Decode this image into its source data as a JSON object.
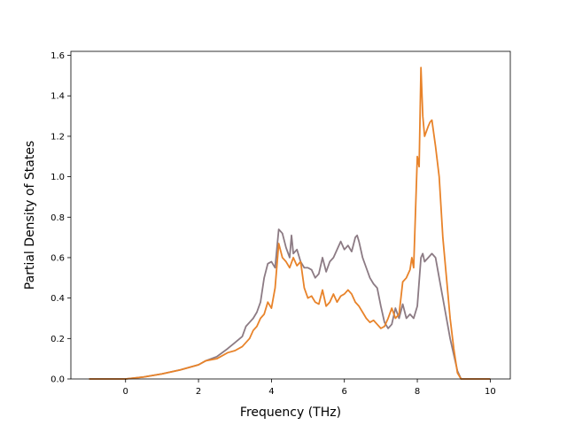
{
  "chart_data": {
    "type": "line",
    "title": "",
    "xlabel": "Frequency (THz)",
    "ylabel": "Partial Density of States",
    "xlim": [
      -1.5,
      10.55
    ],
    "ylim": [
      0.0,
      1.62
    ],
    "xticks": [
      0,
      2,
      4,
      6,
      8,
      10
    ],
    "xtick_labels": [
      "0",
      "2",
      "4",
      "6",
      "8",
      "10"
    ],
    "yticks": [
      0.0,
      0.2,
      0.4,
      0.6,
      0.8,
      1.0,
      1.2,
      1.4,
      1.6
    ],
    "ytick_labels": [
      "0.0",
      "0.2",
      "0.4",
      "0.6",
      "0.8",
      "1.0",
      "1.2",
      "1.4",
      "1.6"
    ],
    "grid": false,
    "legend": "none",
    "series": [
      {
        "color": "#8c7b84",
        "x": [
          -1.0,
          0.0,
          0.5,
          1.0,
          1.5,
          2.0,
          2.2,
          2.5,
          2.8,
          3.0,
          3.2,
          3.3,
          3.4,
          3.5,
          3.6,
          3.7,
          3.8,
          3.9,
          4.0,
          4.1,
          4.2,
          4.3,
          4.4,
          4.5,
          4.55,
          4.6,
          4.7,
          4.8,
          4.9,
          5.0,
          5.1,
          5.2,
          5.3,
          5.4,
          5.5,
          5.6,
          5.7,
          5.8,
          5.9,
          6.0,
          6.1,
          6.2,
          6.3,
          6.35,
          6.4,
          6.5,
          6.6,
          6.7,
          6.8,
          6.9,
          7.0,
          7.1,
          7.2,
          7.3,
          7.4,
          7.5,
          7.6,
          7.7,
          7.8,
          7.9,
          8.0,
          8.1,
          8.15,
          8.2,
          8.3,
          8.4,
          8.5,
          8.6,
          8.7,
          8.8,
          8.9,
          9.0,
          9.1,
          9.2,
          10.0
        ],
        "y": [
          0.0,
          0.0,
          0.01,
          0.025,
          0.045,
          0.07,
          0.09,
          0.11,
          0.15,
          0.18,
          0.21,
          0.26,
          0.28,
          0.3,
          0.33,
          0.38,
          0.5,
          0.57,
          0.58,
          0.55,
          0.74,
          0.72,
          0.65,
          0.6,
          0.71,
          0.62,
          0.64,
          0.58,
          0.55,
          0.55,
          0.54,
          0.5,
          0.52,
          0.6,
          0.53,
          0.58,
          0.6,
          0.64,
          0.68,
          0.64,
          0.66,
          0.63,
          0.7,
          0.71,
          0.68,
          0.6,
          0.55,
          0.5,
          0.47,
          0.45,
          0.36,
          0.28,
          0.25,
          0.27,
          0.35,
          0.3,
          0.37,
          0.3,
          0.32,
          0.3,
          0.36,
          0.6,
          0.62,
          0.58,
          0.6,
          0.62,
          0.6,
          0.5,
          0.4,
          0.3,
          0.2,
          0.12,
          0.04,
          0.0,
          0.0
        ]
      },
      {
        "color": "#e8832a",
        "x": [
          -1.0,
          0.0,
          0.5,
          1.0,
          1.5,
          2.0,
          2.2,
          2.5,
          2.8,
          3.0,
          3.2,
          3.4,
          3.5,
          3.6,
          3.7,
          3.8,
          3.9,
          4.0,
          4.1,
          4.2,
          4.3,
          4.4,
          4.5,
          4.6,
          4.7,
          4.8,
          4.9,
          5.0,
          5.1,
          5.2,
          5.3,
          5.4,
          5.5,
          5.6,
          5.7,
          5.8,
          5.9,
          6.0,
          6.1,
          6.2,
          6.3,
          6.4,
          6.5,
          6.6,
          6.7,
          6.8,
          6.9,
          7.0,
          7.1,
          7.2,
          7.3,
          7.4,
          7.5,
          7.6,
          7.7,
          7.8,
          7.85,
          7.9,
          8.0,
          8.05,
          8.1,
          8.15,
          8.2,
          8.3,
          8.35,
          8.4,
          8.5,
          8.6,
          8.7,
          8.8,
          8.9,
          9.0,
          9.1,
          9.2,
          10.0
        ],
        "y": [
          0.0,
          0.0,
          0.01,
          0.025,
          0.045,
          0.07,
          0.09,
          0.1,
          0.13,
          0.14,
          0.16,
          0.2,
          0.24,
          0.26,
          0.3,
          0.32,
          0.38,
          0.35,
          0.45,
          0.67,
          0.6,
          0.58,
          0.55,
          0.6,
          0.56,
          0.58,
          0.45,
          0.4,
          0.41,
          0.38,
          0.37,
          0.44,
          0.36,
          0.38,
          0.42,
          0.38,
          0.41,
          0.42,
          0.44,
          0.42,
          0.38,
          0.36,
          0.33,
          0.3,
          0.28,
          0.29,
          0.27,
          0.25,
          0.26,
          0.3,
          0.35,
          0.3,
          0.32,
          0.48,
          0.5,
          0.54,
          0.6,
          0.55,
          1.1,
          1.05,
          1.54,
          1.3,
          1.2,
          1.25,
          1.27,
          1.28,
          1.15,
          1.0,
          0.7,
          0.5,
          0.3,
          0.15,
          0.03,
          0.0,
          0.0
        ]
      }
    ]
  }
}
